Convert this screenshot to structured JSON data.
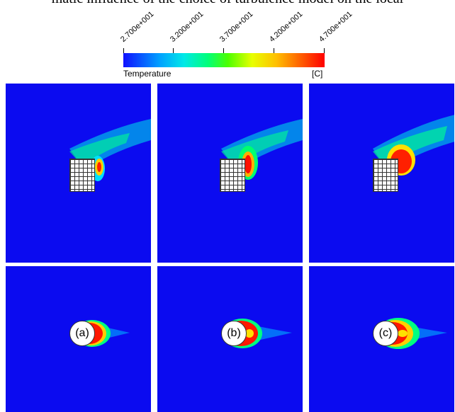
{
  "caption": "matic influence of the choice of turbulence model on the local",
  "legend": {
    "ticks": [
      "2.700e+001",
      "3.200e+001",
      "3.700e+001",
      "4.200e+001",
      "4.700e+001"
    ],
    "label": "Temperature",
    "unit": "[C]"
  },
  "panels": {
    "bottom_labels": [
      "(a)",
      "(b)",
      "(c)"
    ]
  }
}
